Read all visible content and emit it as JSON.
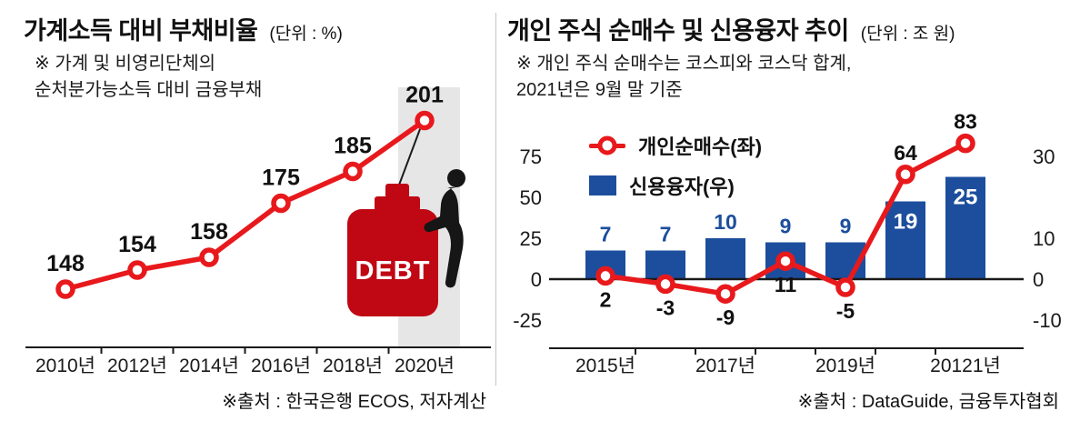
{
  "colors": {
    "accent_red": "#e8191c",
    "bomb_red": "#c00814",
    "bar_blue": "#1c4e9d",
    "text_dark": "#111111",
    "band_gray": "#e6e6e6",
    "axis_dark": "#1a1a1a",
    "divider_gray": "#c3c3c3",
    "white": "#ffffff"
  },
  "chart_data": [
    {
      "type": "line",
      "title": "가계소득 대비 부채비율",
      "unit_label": "(단위 : %)",
      "annotations": [
        "※ 가계 및 비영리단체의",
        "순처분가능소득 대비 금융부채"
      ],
      "categories": [
        "2010년",
        "2012년",
        "2014년",
        "2016년",
        "2018년",
        "2020년"
      ],
      "values": [
        148,
        154,
        158,
        175,
        185,
        201
      ],
      "ylim": [
        140,
        210
      ],
      "line_color": "#e8191c",
      "debt_label": "DEBT",
      "source": "※출처 : 한국은행 ECOS, 저자계산"
    },
    {
      "type": "combo",
      "title": "개인 주식 순매수 및 신용융자 추이",
      "unit_label": "(단위 : 조 원)",
      "annotations": [
        "※ 개인 주식 순매수는 코스피와 코스닥 합계,",
        "2021년은 9월 말 기준"
      ],
      "categories": [
        "2015년",
        "",
        "2017년",
        "",
        "2019년",
        "",
        "20121년"
      ],
      "series": [
        {
          "name": "개인순매수(좌)",
          "type": "line",
          "axis": "left",
          "color": "#e8191c",
          "values": [
            2,
            -3,
            -9,
            11,
            -5,
            64,
            83
          ]
        },
        {
          "name": "신용융자(우)",
          "type": "bar",
          "axis": "right",
          "color": "#1c4e9d",
          "values": [
            7,
            7,
            10,
            9,
            9,
            19,
            25
          ]
        }
      ],
      "left_axis_ticks": [
        75,
        50,
        25,
        0,
        -25
      ],
      "right_axis_ticks": [
        30,
        10,
        0,
        -10
      ],
      "left_ylim": [
        -35,
        95
      ],
      "right_ylim": [
        -14,
        38
      ],
      "legend_position": "top-left",
      "source": "※출처 : DataGuide, 금융투자협회"
    }
  ]
}
